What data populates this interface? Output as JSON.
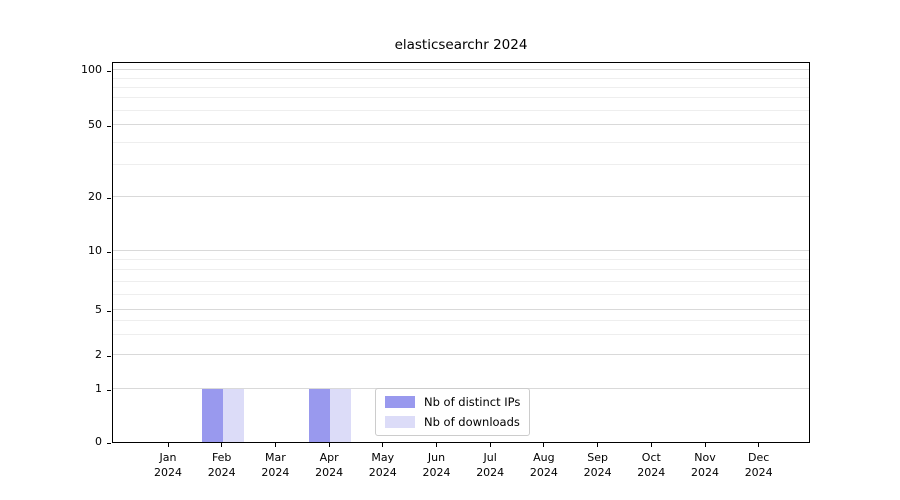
{
  "chart_data": {
    "type": "bar",
    "title": "elasticsearchr 2024",
    "xlabel": "",
    "ylabel": "",
    "yscale": "symlog",
    "grid": true,
    "ylim": [
      0,
      100
    ],
    "yticks": [
      0,
      1,
      2,
      5,
      10,
      20,
      50,
      100
    ],
    "categories": [
      "Jan 2024",
      "Feb 2024",
      "Mar 2024",
      "Apr 2024",
      "May 2024",
      "Jun 2024",
      "Jul 2024",
      "Aug 2024",
      "Sep 2024",
      "Oct 2024",
      "Nov 2024",
      "Dec 2024"
    ],
    "series": [
      {
        "name": "Nb of distinct IPs",
        "color": "#9999ee",
        "values": [
          0,
          1,
          0,
          1,
          0,
          0,
          0,
          0,
          0,
          0,
          0,
          0
        ]
      },
      {
        "name": "Nb of downloads",
        "color": "#dcdcf8",
        "values": [
          0,
          1,
          0,
          1,
          0,
          0,
          0,
          0,
          0,
          0,
          0,
          0
        ]
      }
    ],
    "legend_position": "lower center (inside axes)"
  }
}
